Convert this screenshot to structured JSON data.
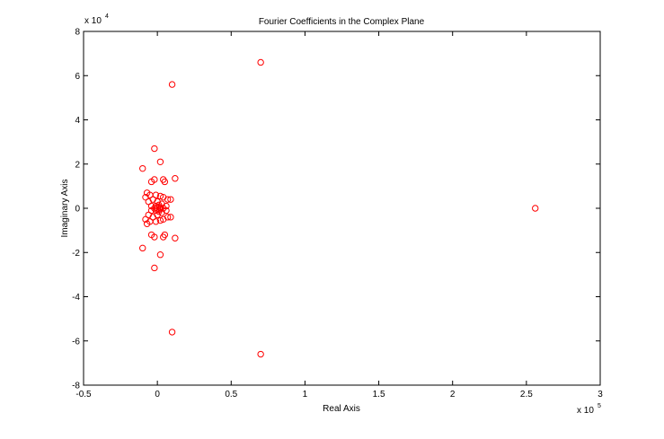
{
  "chart_data": {
    "type": "scatter",
    "title": "Fourier Coefficients in the Complex Plane",
    "xlabel": "Real Axis",
    "ylabel": "Imaginary Axis",
    "xlim": [
      -0.5,
      3
    ],
    "ylim": [
      -8,
      8
    ],
    "x_ticks": [
      "-0.5",
      "0",
      "0.5",
      "1",
      "1.5",
      "2",
      "2.5",
      "3"
    ],
    "y_ticks": [
      "-8",
      "-6",
      "-4",
      "-2",
      "0",
      "2",
      "4",
      "6",
      "8"
    ],
    "x_multiplier": {
      "base": "x 10",
      "exponent": "5"
    },
    "y_multiplier": {
      "base": "x 10",
      "exponent": "4"
    },
    "grid": false,
    "marker": "circle-open",
    "marker_color": "#ff0000",
    "series": [
      {
        "points": [
          [
            2.56,
            0
          ],
          [
            0.7,
            6.6
          ],
          [
            0.7,
            -6.6
          ],
          [
            0.1,
            5.6
          ],
          [
            0.1,
            -5.6
          ],
          [
            -0.1,
            1.8
          ],
          [
            -0.1,
            -1.8
          ],
          [
            -0.02,
            2.7
          ],
          [
            -0.02,
            -2.7
          ],
          [
            0.02,
            2.1
          ],
          [
            0.02,
            -2.1
          ],
          [
            0.12,
            1.35
          ],
          [
            0.12,
            -1.35
          ],
          [
            0.04,
            1.3
          ],
          [
            0.04,
            -1.3
          ],
          [
            0.05,
            1.2
          ],
          [
            0.05,
            -1.2
          ],
          [
            -0.02,
            1.3
          ],
          [
            -0.02,
            -1.3
          ],
          [
            -0.04,
            1.2
          ],
          [
            -0.04,
            -1.2
          ],
          [
            0.09,
            0.4
          ],
          [
            0.09,
            -0.4
          ],
          [
            0.07,
            0.4
          ],
          [
            0.07,
            -0.4
          ],
          [
            -0.07,
            0.7
          ],
          [
            -0.07,
            -0.7
          ],
          [
            -0.08,
            0.5
          ],
          [
            -0.08,
            -0.5
          ],
          [
            -0.05,
            0.6
          ],
          [
            -0.05,
            -0.6
          ],
          [
            -0.06,
            0.3
          ],
          [
            -0.06,
            -0.3
          ],
          [
            -0.01,
            0.6
          ],
          [
            -0.01,
            -0.6
          ],
          [
            0.02,
            0.55
          ],
          [
            0.02,
            -0.55
          ],
          [
            0.04,
            0.5
          ],
          [
            0.04,
            -0.5
          ],
          [
            0.06,
            0.1
          ],
          [
            0.06,
            -0.1
          ],
          [
            -0.03,
            0.4
          ],
          [
            -0.03,
            -0.4
          ],
          [
            -0.04,
            0.1
          ],
          [
            -0.04,
            -0.1
          ],
          [
            0.0,
            0.3
          ],
          [
            0.0,
            -0.3
          ],
          [
            0.01,
            0.15
          ],
          [
            0.01,
            -0.15
          ],
          [
            0.03,
            0.2
          ],
          [
            0.03,
            -0.2
          ],
          [
            -0.01,
            0.1
          ],
          [
            -0.01,
            -0.1
          ],
          [
            0.015,
            0.05
          ],
          [
            0.015,
            -0.05
          ],
          [
            0.0,
            0.0
          ],
          [
            0.02,
            0.0
          ],
          [
            -0.02,
            0.0
          ],
          [
            0.04,
            0.0
          ]
        ]
      }
    ]
  }
}
